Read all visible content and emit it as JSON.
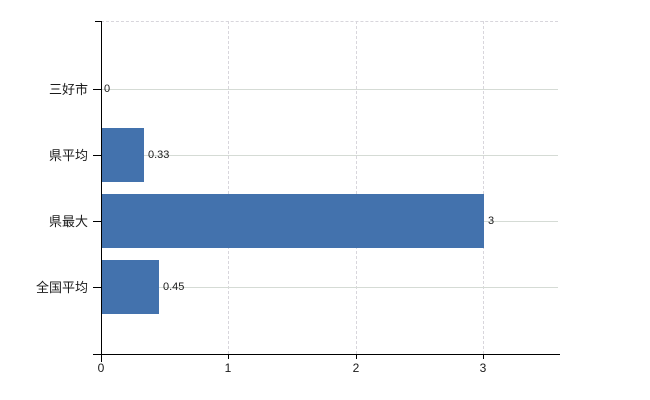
{
  "chart_data": {
    "type": "bar",
    "orientation": "horizontal",
    "title": "",
    "xlabel": "",
    "ylabel": "",
    "categories": [
      "三好市",
      "県平均",
      "県最大",
      "全国平均"
    ],
    "values": [
      0,
      0.33,
      3,
      0.45
    ],
    "value_labels": [
      "0",
      "0.33",
      "3",
      "0.45"
    ],
    "x_ticks": [
      0,
      1,
      2,
      3
    ],
    "x_tick_labels": [
      "0",
      "1",
      "2",
      "3"
    ],
    "xlim": [
      0,
      3.6
    ],
    "grid": {
      "horizontal": "solid",
      "vertical": "dashed",
      "top_border": "dashed"
    },
    "legend": "none"
  },
  "colors": {
    "bar": "#4372ad",
    "h_gridline": "#d5dbd5",
    "v_gridline": "#d8d6dc",
    "axis": "#000000",
    "text": "#1a1a1a",
    "background": "#ffffff"
  }
}
